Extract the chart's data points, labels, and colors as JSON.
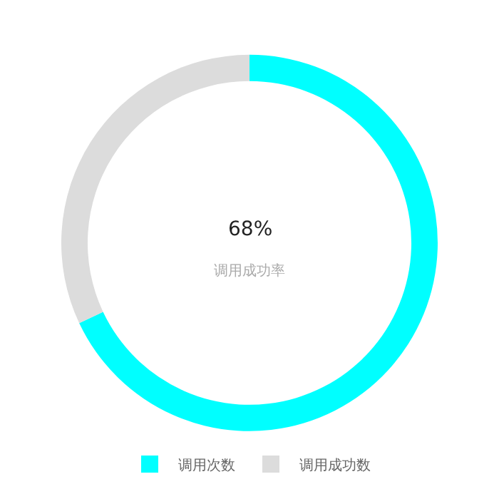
{
  "chart_data": {
    "type": "donut",
    "categories": [
      "调用次数",
      "调用成功数"
    ],
    "values": [
      68,
      32
    ],
    "colors": [
      "#00ffff",
      "#dcdcdc"
    ],
    "annotations": [
      "68%",
      "调用成功率"
    ],
    "legend": "bottom"
  }
}
